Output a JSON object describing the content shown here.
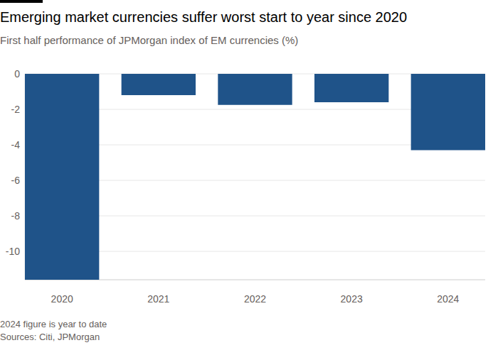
{
  "chart_data": {
    "type": "bar",
    "title": "Emerging market currencies suffer worst start to year since 2020",
    "subtitle": "First half performance of JPMorgan index of EM currencies (%)",
    "categories": [
      "2020",
      "2021",
      "2022",
      "2023",
      "2024"
    ],
    "values": [
      -11.6,
      -1.2,
      -1.75,
      -1.6,
      -4.3
    ],
    "color": "#1f5389",
    "ylim": [
      -11.6,
      0
    ],
    "yticks": [
      0,
      -2,
      -4,
      -6,
      -8,
      -10
    ],
    "grid": true,
    "note": "2024 figure is year to date",
    "source": "Sources: Citi, JPMorgan"
  }
}
